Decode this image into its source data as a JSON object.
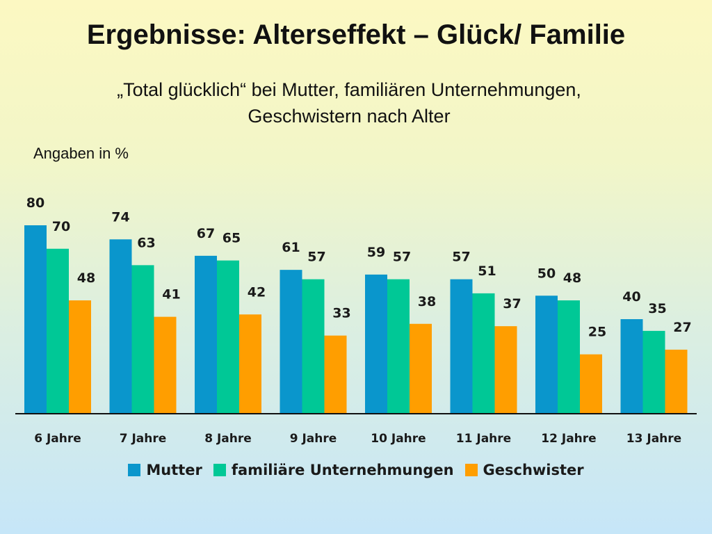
{
  "header": {
    "title": "Ergebnisse: Alterseffekt – Glück/ Familie",
    "subtitle_line1": "„Total glücklich“ bei Mutter, familiären Unternehmungen,",
    "subtitle_line2": "Geschwistern nach Alter",
    "unit_note": "Angaben in %"
  },
  "colors": {
    "mutter": "#0a96cc",
    "unternehmungen": "#00c896",
    "geschwister": "#ff9e00",
    "baseline": "#111111"
  },
  "chart_data": {
    "type": "bar",
    "title": "",
    "xlabel": "",
    "ylabel": "",
    "ylim": [
      0,
      100
    ],
    "grid": false,
    "legend_position": "bottom",
    "categories": [
      "6 Jahre",
      "7 Jahre",
      "8 Jahre",
      "9 Jahre",
      "10 Jahre",
      "11 Jahre",
      "12 Jahre",
      "13 Jahre"
    ],
    "series": [
      {
        "name": "Mutter",
        "color": "#0a96cc",
        "values": [
          80,
          74,
          67,
          61,
          59,
          57,
          50,
          40
        ]
      },
      {
        "name": "familiäre Unternehmungen",
        "color": "#00c896",
        "values": [
          70,
          63,
          65,
          57,
          57,
          51,
          48,
          35
        ]
      },
      {
        "name": "Geschwister",
        "color": "#ff9e00",
        "values": [
          48,
          41,
          42,
          33,
          38,
          37,
          25,
          27
        ]
      }
    ]
  }
}
